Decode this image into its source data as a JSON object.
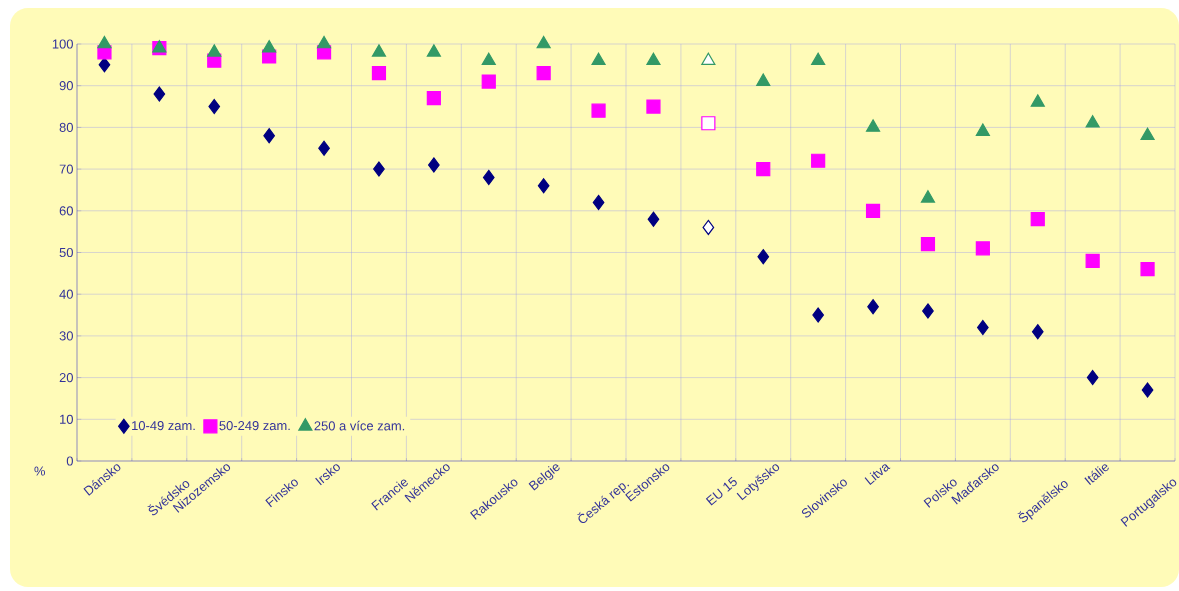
{
  "chart_data": {
    "type": "scatter",
    "categories": [
      "Dánsko",
      "Švédsko",
      "Nizozemsko",
      "Finsko",
      "Irsko",
      "Francie",
      "Německo",
      "Rakousko",
      "Belgie",
      "Česká rep.",
      "Estonsko",
      "EU 15",
      "Lotyšsko",
      "Slovinsko",
      "Litva",
      "Polsko",
      "Maďarsko",
      "Španělsko",
      "Itálie",
      "Portugalsko"
    ],
    "ylabel": "%",
    "ylim": [
      0,
      100
    ],
    "yticks": [
      0,
      10,
      20,
      30,
      40,
      50,
      60,
      70,
      80,
      90,
      100
    ],
    "grid": true,
    "legend": "bottom left",
    "series": [
      {
        "name": "10-49 zam.",
        "color": "#000080",
        "marker": "diamond",
        "colors": [
          "#000080",
          "#000080",
          "#000080",
          "#000080",
          "#000080",
          "#000080",
          "#000080",
          "#000080",
          "#000080",
          "#000080",
          "#000080",
          "#ffffff",
          "#000080",
          "#000080",
          "#000080",
          "#000080",
          "#000080",
          "#000080",
          "#000080",
          "#000080"
        ],
        "values": [
          95,
          88,
          85,
          78,
          75,
          70,
          71,
          68,
          66,
          62,
          58,
          56,
          49,
          35,
          37,
          36,
          32,
          31,
          20,
          17
        ]
      },
      {
        "name": "50-249 zam.",
        "color": "#ff00ff",
        "marker": "square",
        "colors": [
          "#ff00ff",
          "#ff00ff",
          "#ff00ff",
          "#ff00ff",
          "#ff00ff",
          "#ff00ff",
          "#ff00ff",
          "#ff00ff",
          "#ff00ff",
          "#ff00ff",
          "#ff00ff",
          "#ffffff",
          "#ff00ff",
          "#ff00ff",
          "#ff00ff",
          "#ff00ff",
          "#ff00ff",
          "#ff00ff",
          "#ff00ff",
          "#ff00ff"
        ],
        "values": [
          98,
          99,
          96,
          97,
          98,
          93,
          87,
          91,
          93,
          84,
          85,
          81,
          70,
          72,
          60,
          52,
          51,
          58,
          48,
          46
        ]
      },
      {
        "name": "250 a více zam.",
        "color": "#339966",
        "marker": "triangle",
        "colors": [
          "#339966",
          "#339966",
          "#339966",
          "#339966",
          "#339966",
          "#339966",
          "#339966",
          "#339966",
          "#339966",
          "#339966",
          "#339966",
          "#ffffff",
          "#339966",
          "#339966",
          "#339966",
          "#339966",
          "#339966",
          "#339966",
          "#339966",
          "#339966"
        ],
        "values": [
          100,
          99,
          98,
          99,
          100,
          98,
          98,
          96,
          100,
          96,
          96,
          96,
          91,
          96,
          80,
          63,
          79,
          86,
          81,
          78
        ]
      }
    ]
  }
}
